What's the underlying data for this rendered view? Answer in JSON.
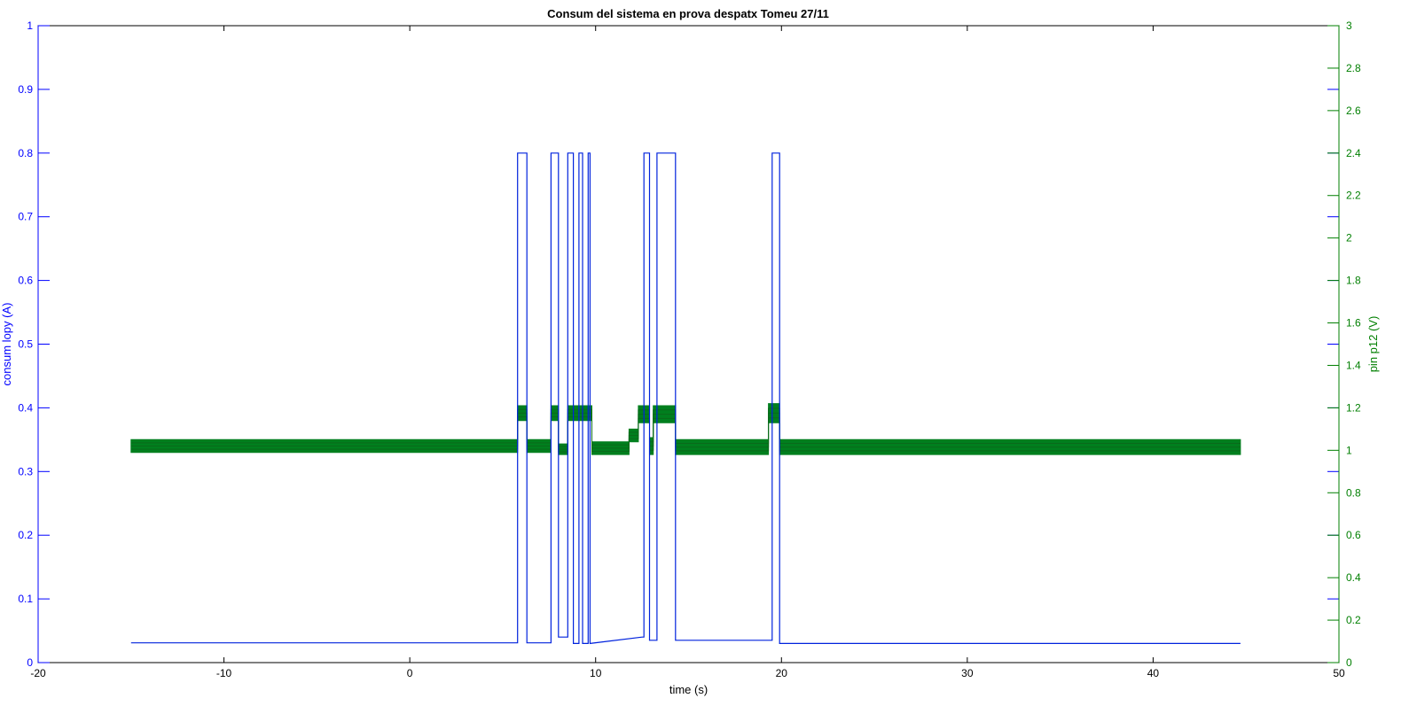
{
  "chart_data": {
    "type": "line",
    "title": "Consum del sistema en prova despatx Tomeu 27/11",
    "xlabel": "time (s)",
    "ylabel_left": "consum lopy (A)",
    "ylabel_right": "pin p12 (V)",
    "xlim": [
      -20,
      50
    ],
    "ylim_left": [
      0,
      1
    ],
    "ylim_right": [
      0,
      3
    ],
    "x_ticks": [
      -20,
      -10,
      0,
      10,
      20,
      30,
      40,
      50
    ],
    "x_tick_labels": [
      "-20",
      "-10",
      "0",
      "10",
      "20",
      "30",
      "40",
      "50"
    ],
    "y_left_ticks": [
      0,
      0.1,
      0.2,
      0.3,
      0.4,
      0.5,
      0.6,
      0.7,
      0.8,
      0.9,
      1
    ],
    "y_left_tick_labels": [
      "0",
      "0.1",
      "0.2",
      "0.3",
      "0.4",
      "0.5",
      "0.6",
      "0.7",
      "0.8",
      "0.9",
      "1"
    ],
    "y_right_ticks": [
      0,
      0.2,
      0.4,
      0.6,
      0.8,
      1,
      1.2,
      1.4,
      1.6,
      1.8,
      2,
      2.2,
      2.4,
      2.6,
      2.8,
      3
    ],
    "y_right_tick_labels": [
      "0",
      "0.2",
      "0.4",
      "0.6",
      "0.8",
      "1",
      "1.2",
      "1.4",
      "1.6",
      "1.8",
      "2",
      "2.2",
      "2.4",
      "2.6",
      "2.8",
      "3"
    ],
    "grid": false,
    "colors": {
      "left_axis": "#0000ff",
      "right_axis": "#007f00",
      "current_line": "#0022dd",
      "voltage_fill": "#007f1e"
    },
    "series": [
      {
        "axis": "left",
        "x": [
          -15,
          5.8,
          5.8,
          6.3,
          6.3,
          7.6,
          7.6,
          8.0,
          8.0,
          8.5,
          8.5,
          8.8,
          8.8,
          9.1,
          9.1,
          9.3,
          9.3,
          9.6,
          9.6,
          9.7,
          9.7,
          12.5,
          12.6,
          12.6,
          12.9,
          12.9,
          13.3,
          13.3,
          14.3,
          14.3,
          19.5,
          19.5,
          19.9,
          19.9,
          44.7
        ],
        "y": [
          0.031,
          0.031,
          0.8,
          0.8,
          0.031,
          0.031,
          0.8,
          0.8,
          0.04,
          0.04,
          0.8,
          0.8,
          0.03,
          0.03,
          0.8,
          0.8,
          0.03,
          0.03,
          0.8,
          0.8,
          0.03,
          0.04,
          0.04,
          0.8,
          0.8,
          0.035,
          0.035,
          0.8,
          0.8,
          0.035,
          0.035,
          0.8,
          0.8,
          0.03,
          0.03
        ]
      },
      {
        "axis": "right",
        "x": [
          -15,
          5.8,
          5.8,
          6.3,
          6.3,
          7.6,
          7.6,
          8.0,
          8.0,
          8.5,
          8.5,
          9.8,
          9.8,
          11.8,
          11.8,
          12.3,
          12.3,
          12.9,
          12.9,
          13.1,
          13.1,
          14.3,
          14.3,
          15.5,
          15.5,
          19.3,
          19.3,
          19.9,
          19.9,
          44.7
        ],
        "y_low": [
          0.99,
          0.99,
          1.14,
          1.14,
          0.99,
          0.99,
          1.14,
          1.14,
          0.98,
          0.98,
          1.14,
          1.14,
          0.98,
          0.98,
          1.04,
          1.04,
          1.13,
          1.13,
          0.98,
          0.98,
          1.13,
          1.13,
          0.98,
          0.98,
          0.98,
          0.98,
          1.13,
          1.13,
          0.98,
          0.98
        ],
        "y_high": [
          1.05,
          1.05,
          1.21,
          1.21,
          1.05,
          1.05,
          1.21,
          1.21,
          1.03,
          1.03,
          1.21,
          1.21,
          1.04,
          1.04,
          1.1,
          1.1,
          1.21,
          1.21,
          1.06,
          1.06,
          1.21,
          1.21,
          1.05,
          1.05,
          1.05,
          1.05,
          1.22,
          1.22,
          1.05,
          1.05
        ]
      }
    ]
  }
}
